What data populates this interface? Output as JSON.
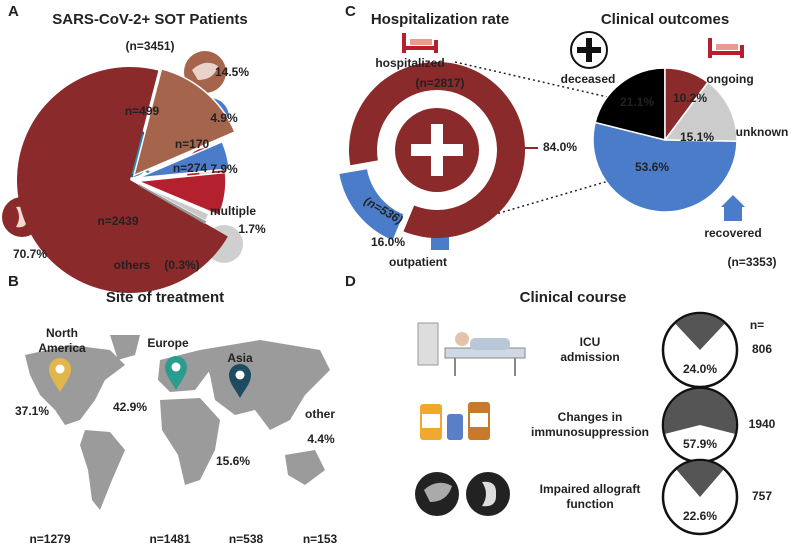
{
  "chart_data": [
    {
      "type": "pie",
      "panel": "A",
      "title": "SARS-CoV-2+ SOT Patients",
      "subtitle": "(n=3451)",
      "categories": [
        null,
        null,
        null,
        null,
        "multiple",
        "others"
      ],
      "values": [
        70.7,
        14.5,
        4.9,
        7.9,
        1.7,
        0.3
      ],
      "value_labels": [
        "70.7%",
        "14.5%",
        "4.9%",
        "7.9%",
        "1.7%",
        "(0.3%)"
      ],
      "count_labels": [
        "n=2439",
        "n=499",
        "n=170",
        "n=274",
        null,
        null
      ],
      "colors": [
        "#8a2a2b",
        "#a5654c",
        "#4a7cc9",
        "#b5202e",
        "#c9c9c9",
        "#ffffff"
      ]
    },
    {
      "type": "map",
      "panel": "B",
      "title": "Site of treatment",
      "categories": [
        "North America",
        "Europe",
        "Asia",
        "other"
      ],
      "values": [
        37.1,
        42.9,
        15.6,
        4.4
      ],
      "value_labels": [
        "37.1%",
        "42.9%",
        "15.6%",
        "4.4%"
      ],
      "count_labels": [
        "n=1279",
        "n=1481",
        "n=538",
        "n=153"
      ],
      "colors": [
        "#e3b64c",
        "#2a9d8f",
        "#1f4b60",
        "#f2a65a"
      ]
    },
    {
      "type": "donut",
      "panel": "C",
      "title": "Hospitalization rate",
      "categories": [
        "hospitalized",
        "outpatient"
      ],
      "values": [
        84.0,
        16.0
      ],
      "value_labels": [
        "84.0%",
        "16.0%"
      ],
      "count_labels": [
        "(n=2817)",
        "(n=536)"
      ],
      "colors": [
        "#8a2a2b",
        "#4a7cc9"
      ]
    },
    {
      "type": "pie",
      "title": "Clinical outcomes",
      "subtitle": "(n=3353)",
      "categories": [
        "deceased",
        "ongoing",
        "unknown",
        "recovered"
      ],
      "values": [
        21.1,
        10.2,
        15.1,
        53.6
      ],
      "value_labels": [
        "21.1%",
        "10.2%",
        "15.1%",
        "53.6%"
      ],
      "colors": [
        "#000000",
        "#8a2a2b",
        "#cccccc",
        "#4a7cc9"
      ]
    },
    {
      "type": "wedges",
      "panel": "D",
      "title": "Clinical course",
      "count_header": "n=",
      "categories": [
        "ICU admission",
        "Changes in immunosuppression",
        "Impaired allograft function"
      ],
      "values": [
        24.0,
        57.9,
        22.6
      ],
      "value_labels": [
        "24.0%",
        "57.9%",
        "22.6%"
      ],
      "counts": [
        806,
        1940,
        757
      ],
      "color": "#555555"
    }
  ]
}
